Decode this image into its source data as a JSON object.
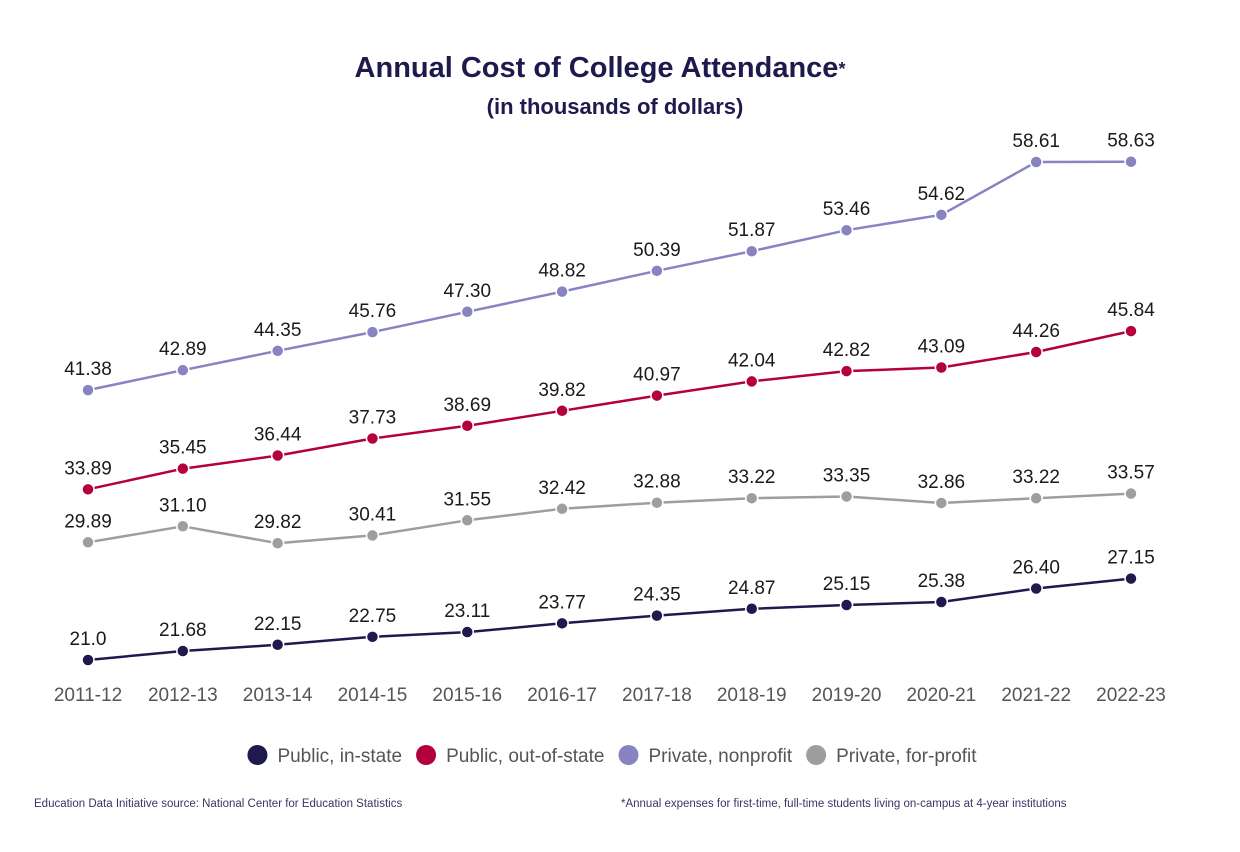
{
  "chart_data": {
    "type": "line",
    "title": "Annual Cost of College Attendance",
    "title_marker": "*",
    "subtitle": "(in thousands of dollars)",
    "xlabel": "",
    "ylabel": "",
    "grid": false,
    "legend_position": "bottom",
    "categories": [
      "2011-12",
      "2012-13",
      "2013-14",
      "2014-15",
      "2015-16",
      "2016-17",
      "2017-18",
      "2018-19",
      "2019-20",
      "2020-21",
      "2021-22",
      "2022-23"
    ],
    "ylim": [
      21.0,
      58.61
    ],
    "series": [
      {
        "name": "Private, nonprofit",
        "color": "#8884c2",
        "values": [
          41.38,
          42.89,
          44.35,
          45.76,
          47.3,
          48.82,
          50.39,
          51.87,
          53.46,
          54.62,
          58.61,
          58.63
        ],
        "labels": [
          "41.38",
          "42.89",
          "44.35",
          "45.76",
          "47.30",
          "48.82",
          "50.39",
          "51.87",
          "53.46",
          "54.62",
          "58.61",
          "58.63"
        ]
      },
      {
        "name": "Public, out-of-state",
        "color": "#b4003f",
        "values": [
          33.89,
          35.45,
          36.44,
          37.73,
          38.69,
          39.82,
          40.97,
          42.04,
          42.82,
          43.09,
          44.26,
          45.84
        ],
        "labels": [
          "33.89",
          "35.45",
          "36.44",
          "37.73",
          "38.69",
          "39.82",
          "40.97",
          "42.04",
          "42.82",
          "43.09",
          "44.26",
          "45.84"
        ]
      },
      {
        "name": "Private, for-profit",
        "color": "#9e9e9e",
        "values": [
          29.89,
          31.1,
          29.82,
          30.41,
          31.55,
          32.42,
          32.88,
          33.22,
          33.35,
          32.86,
          33.22,
          33.57
        ],
        "labels": [
          "29.89",
          "31.10",
          "29.82",
          "30.41",
          "31.55",
          "32.42",
          "32.88",
          "33.22",
          "33.35",
          "32.86",
          "33.22",
          "33.57"
        ]
      },
      {
        "name": "Public, in-state",
        "color": "#1e1a4d",
        "values": [
          21.0,
          21.68,
          22.15,
          22.75,
          23.11,
          23.77,
          24.35,
          24.87,
          25.15,
          25.38,
          26.4,
          27.15
        ],
        "labels": [
          "21.0",
          "21.68",
          "22.15",
          "22.75",
          "23.11",
          "23.77",
          "24.35",
          "24.87",
          "25.15",
          "25.38",
          "26.40",
          "27.15"
        ]
      }
    ],
    "legend": [
      {
        "name": "Public, in-state",
        "color": "#1e1a4d"
      },
      {
        "name": "Public, out-of-state",
        "color": "#b4003f"
      },
      {
        "name": "Private, nonprofit",
        "color": "#8884c2"
      },
      {
        "name": "Private, for-profit",
        "color": "#9e9e9e"
      }
    ]
  },
  "footer": {
    "source": "Education Data Initiative source: National Center for Education Statistics",
    "note": "*Annual expenses for first-time, full-time students living on-campus at 4-year institutions"
  }
}
